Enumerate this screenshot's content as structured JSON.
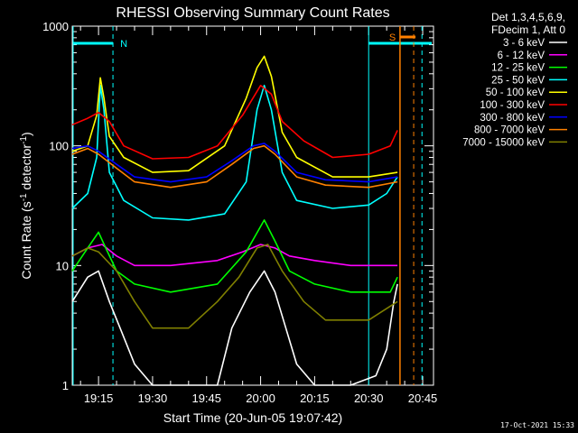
{
  "chart_data": {
    "type": "line",
    "title": "RHESSI Observing Summary Count Rates",
    "xlabel": "Start Time (20-Jun-05 19:07:42)",
    "ylabel_main": "Count Rate (s",
    "ylabel_sup1": "-1",
    "ylabel_mid": " detector",
    "ylabel_sup2": "-1",
    "ylabel_end": ")",
    "y_scale": "log",
    "ylim": [
      1,
      1000
    ],
    "xlim": [
      "19:07:42",
      "20:48:00"
    ],
    "x_ticks": [
      {
        "label": "19:15",
        "minute": 15
      },
      {
        "label": "19:30",
        "minute": 30
      },
      {
        "label": "19:45",
        "minute": 45
      },
      {
        "label": "20:00",
        "minute": 60
      },
      {
        "label": "20:15",
        "minute": 75
      },
      {
        "label": "20:30",
        "minute": 90
      },
      {
        "label": "20:45",
        "minute": 105
      }
    ],
    "y_ticks": [
      {
        "label": "1",
        "value": 1
      },
      {
        "label": "10",
        "value": 10
      },
      {
        "label": "100",
        "value": 100
      },
      {
        "label": "1000",
        "value": 1000
      }
    ],
    "legend": {
      "placement": "top-right",
      "header1": "Det 1,3,4,5,6,9,",
      "header2": "FDecim 1, Att 0"
    },
    "series": [
      {
        "name": "3 - 6 keV",
        "color": "#ffffff",
        "points": [
          [
            7.7,
            5
          ],
          [
            12,
            8
          ],
          [
            15,
            9
          ],
          [
            18,
            5
          ],
          [
            21,
            3
          ],
          [
            25,
            1.5
          ],
          [
            30,
            1
          ],
          [
            40,
            1
          ],
          [
            48,
            1
          ],
          [
            52,
            3
          ],
          [
            57,
            6
          ],
          [
            61,
            9
          ],
          [
            64,
            6
          ],
          [
            67,
            3
          ],
          [
            70,
            1.5
          ],
          [
            75,
            1
          ],
          [
            85,
            1
          ],
          [
            92,
            1.2
          ],
          [
            95,
            2
          ],
          [
            97,
            5
          ],
          [
            98,
            7
          ]
        ]
      },
      {
        "name": "6 - 12 keV",
        "color": "#ff00ff",
        "points": [
          [
            7.7,
            12
          ],
          [
            12,
            14
          ],
          [
            16,
            15
          ],
          [
            20,
            12
          ],
          [
            25,
            10
          ],
          [
            35,
            10
          ],
          [
            48,
            11
          ],
          [
            55,
            13
          ],
          [
            60,
            15
          ],
          [
            64,
            14
          ],
          [
            68,
            12
          ],
          [
            75,
            11
          ],
          [
            85,
            10
          ],
          [
            98,
            10
          ]
        ]
      },
      {
        "name": "12 - 25 keV",
        "color": "#00ff00",
        "points": [
          [
            7.7,
            9
          ],
          [
            12,
            14
          ],
          [
            15,
            19
          ],
          [
            17,
            14
          ],
          [
            20,
            9
          ],
          [
            25,
            7
          ],
          [
            35,
            6
          ],
          [
            48,
            7
          ],
          [
            56,
            13
          ],
          [
            61,
            24
          ],
          [
            64,
            16
          ],
          [
            68,
            9
          ],
          [
            75,
            7
          ],
          [
            85,
            6
          ],
          [
            96,
            6
          ],
          [
            98,
            8
          ]
        ]
      },
      {
        "name": "25 - 50 keV",
        "color": "#00ffff",
        "points": [
          [
            7.7,
            30
          ],
          [
            12,
            40
          ],
          [
            14.5,
            80
          ],
          [
            15.5,
            320
          ],
          [
            16.5,
            200
          ],
          [
            18,
            60
          ],
          [
            22,
            35
          ],
          [
            30,
            25
          ],
          [
            40,
            24
          ],
          [
            50,
            27
          ],
          [
            56,
            50
          ],
          [
            59,
            200
          ],
          [
            61,
            320
          ],
          [
            63,
            200
          ],
          [
            66,
            60
          ],
          [
            70,
            35
          ],
          [
            80,
            30
          ],
          [
            90,
            32
          ],
          [
            95,
            40
          ],
          [
            98,
            55
          ]
        ]
      },
      {
        "name": "50 - 100 keV",
        "color": "#ffff00",
        "points": [
          [
            7.7,
            90
          ],
          [
            12,
            100
          ],
          [
            14.5,
            180
          ],
          [
            15.5,
            370
          ],
          [
            16.5,
            250
          ],
          [
            18,
            120
          ],
          [
            22,
            80
          ],
          [
            30,
            60
          ],
          [
            40,
            62
          ],
          [
            50,
            100
          ],
          [
            56,
            250
          ],
          [
            59,
            450
          ],
          [
            61,
            560
          ],
          [
            63,
            380
          ],
          [
            66,
            130
          ],
          [
            70,
            80
          ],
          [
            80,
            55
          ],
          [
            90,
            55
          ],
          [
            98,
            60
          ]
        ]
      },
      {
        "name": "100 - 300 keV",
        "color": "#ff0000",
        "points": [
          [
            7.7,
            150
          ],
          [
            12,
            170
          ],
          [
            15,
            190
          ],
          [
            18,
            160
          ],
          [
            22,
            100
          ],
          [
            30,
            78
          ],
          [
            40,
            80
          ],
          [
            48,
            100
          ],
          [
            55,
            180
          ],
          [
            60,
            320
          ],
          [
            63,
            270
          ],
          [
            66,
            160
          ],
          [
            72,
            110
          ],
          [
            80,
            80
          ],
          [
            90,
            85
          ],
          [
            96,
            100
          ],
          [
            98,
            135
          ]
        ]
      },
      {
        "name": "300 - 800 keV",
        "color": "#0000ff",
        "points": [
          [
            7.7,
            95
          ],
          [
            12,
            100
          ],
          [
            15,
            90
          ],
          [
            20,
            70
          ],
          [
            25,
            55
          ],
          [
            35,
            50
          ],
          [
            45,
            55
          ],
          [
            52,
            75
          ],
          [
            58,
            100
          ],
          [
            61,
            105
          ],
          [
            64,
            90
          ],
          [
            70,
            60
          ],
          [
            78,
            52
          ],
          [
            90,
            50
          ],
          [
            98,
            55
          ]
        ]
      },
      {
        "name": "800 - 7000 keV",
        "color": "#ff8000",
        "points": [
          [
            7.7,
            85
          ],
          [
            12,
            95
          ],
          [
            15,
            85
          ],
          [
            20,
            65
          ],
          [
            25,
            50
          ],
          [
            35,
            45
          ],
          [
            45,
            50
          ],
          [
            52,
            70
          ],
          [
            58,
            95
          ],
          [
            61,
            100
          ],
          [
            64,
            85
          ],
          [
            70,
            55
          ],
          [
            78,
            47
          ],
          [
            90,
            45
          ],
          [
            98,
            50
          ]
        ]
      },
      {
        "name": "7000 - 15000 keV",
        "color": "#808000",
        "points": [
          [
            7.7,
            12
          ],
          [
            12,
            14
          ],
          [
            15,
            13
          ],
          [
            20,
            9
          ],
          [
            25,
            5
          ],
          [
            30,
            3
          ],
          [
            40,
            3
          ],
          [
            48,
            5
          ],
          [
            54,
            8
          ],
          [
            59,
            14
          ],
          [
            62,
            15
          ],
          [
            66,
            9
          ],
          [
            72,
            5
          ],
          [
            78,
            3.5
          ],
          [
            90,
            3.5
          ],
          [
            98,
            5
          ]
        ]
      }
    ],
    "annotations": {
      "night_label": "N",
      "saa_label": "S",
      "night_color": "#00ffff",
      "saa_color": "#ff8000",
      "night_intervals": [
        [
          7.7,
          19
        ]
      ],
      "night_start_lines": [
        90
      ],
      "night_dashed_lines": [
        19,
        104.8
      ],
      "saa_interval": [
        98.7,
        103
      ],
      "saa_line": 98.7,
      "saa_dashed_line": 102.5
    }
  },
  "timestamp": "17-Oct-2021 15:33"
}
